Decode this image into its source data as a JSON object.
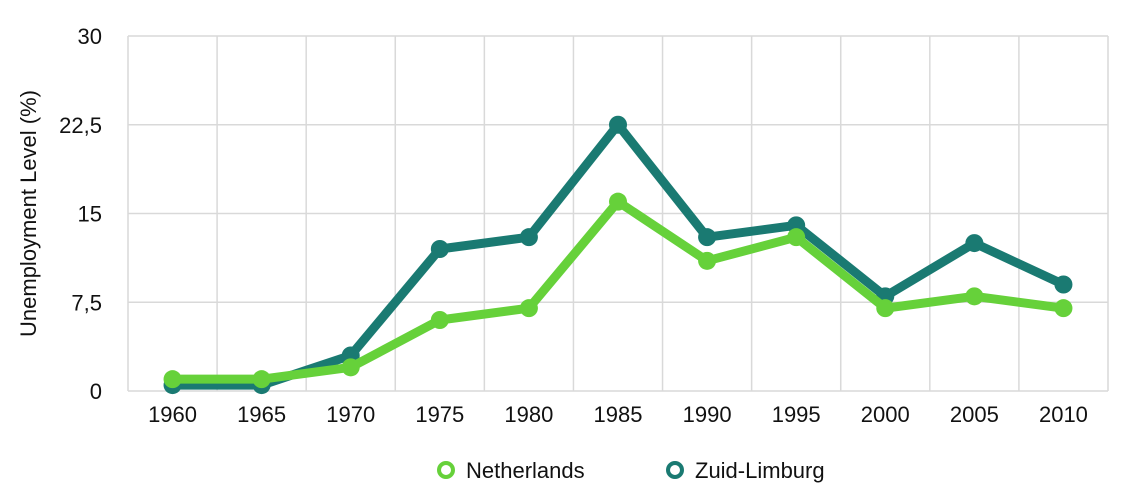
{
  "chart_data": {
    "type": "line",
    "title": "",
    "xlabel": "",
    "ylabel": "Unemployment Level (%)",
    "categories": [
      "1960",
      "1965",
      "1970",
      "1975",
      "1980",
      "1985",
      "1990",
      "1995",
      "2000",
      "2005",
      "2010"
    ],
    "ylim": [
      0,
      30
    ],
    "yticks": [
      0,
      7.5,
      15,
      22.5,
      30
    ],
    "ytick_labels": [
      "0",
      "7,5",
      "15",
      "22,5",
      "30"
    ],
    "grid": true,
    "legend_position": "bottom",
    "series": [
      {
        "name": "Zuid-Limburg",
        "color": "#1a7a72",
        "values": [
          0.5,
          0.5,
          3,
          12,
          13,
          22.5,
          13,
          14,
          8,
          12.5,
          9
        ]
      },
      {
        "name": "Netherlands",
        "color": "#66d13a",
        "values": [
          1,
          1,
          2,
          6,
          7,
          16,
          11,
          13,
          7,
          8,
          7
        ]
      }
    ],
    "legend_order": [
      "Netherlands",
      "Zuid-Limburg"
    ]
  }
}
